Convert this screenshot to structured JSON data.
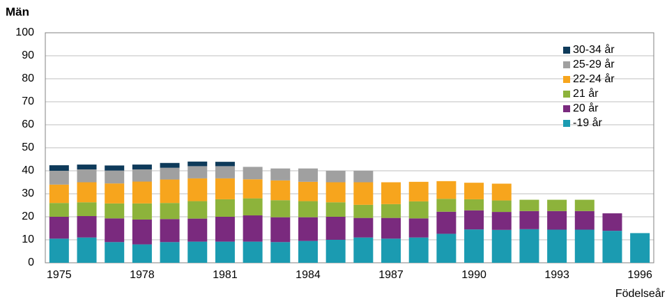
{
  "chart_data": {
    "type": "stacked_bar",
    "title": "Män",
    "x_label": "Födelseår",
    "categories": [
      "1975",
      null,
      null,
      "1978",
      null,
      null,
      "1981",
      null,
      null,
      "1984",
      null,
      null,
      "1987",
      null,
      null,
      "1990",
      null,
      null,
      "1993",
      null,
      null,
      "1996"
    ],
    "series": [
      {
        "name": "-19 år",
        "color": "#1b9bb1",
        "values": [
          10.5,
          11,
          9,
          8,
          9,
          9.2,
          9.2,
          9.2,
          9,
          9.5,
          10,
          11,
          10.5,
          11,
          12.6,
          14.5,
          14.3,
          14.6,
          14.4,
          14.4,
          13.9,
          12.9
        ]
      },
      {
        "name": "20 år",
        "color": "#7a2a7e",
        "values": [
          9.5,
          9.3,
          10.3,
          10.8,
          10,
          10,
          10.8,
          11.4,
          10.8,
          10.3,
          10,
          8.5,
          9,
          8.3,
          9.6,
          8.3,
          7.8,
          7.9,
          8.1,
          8.1,
          7.6,
          null
        ]
      },
      {
        "name": "21 år",
        "color": "#8db33b",
        "values": [
          6,
          6,
          6.5,
          7,
          7,
          7.6,
          7.6,
          7.4,
          7.4,
          7,
          6.3,
          5.7,
          6,
          7.4,
          5.6,
          4.8,
          5,
          4.9,
          4.9,
          4.9,
          null,
          null
        ]
      },
      {
        "name": "22-24 år",
        "color": "#f7a51d",
        "values": [
          8,
          8.7,
          8.7,
          9.5,
          10.2,
          9.9,
          9.1,
          8.3,
          8.6,
          8.4,
          8.7,
          9.8,
          9.5,
          8.5,
          7.7,
          7.2,
          7.3,
          null,
          null,
          null,
          null,
          null
        ]
      },
      {
        "name": "25-29 år",
        "color": "#a0a0a0",
        "values": [
          6,
          5.6,
          5.6,
          5.3,
          5.1,
          5.3,
          5.3,
          5.4,
          5.2,
          5.8,
          5,
          5,
          null,
          null,
          null,
          null,
          null,
          null,
          null,
          null,
          null,
          null
        ]
      },
      {
        "name": "30-34 år",
        "color": "#0e3a5a",
        "values": [
          2.4,
          2.1,
          2.2,
          2.1,
          2.1,
          2,
          1.9,
          null,
          null,
          null,
          null,
          null,
          null,
          null,
          null,
          null,
          null,
          null,
          null,
          null,
          null,
          null
        ]
      }
    ],
    "ylim": [
      0,
      100
    ],
    "yticks": [
      0,
      10,
      20,
      30,
      40,
      50,
      60,
      70,
      80,
      90,
      100
    ],
    "grid": true,
    "legend": "upper right"
  }
}
